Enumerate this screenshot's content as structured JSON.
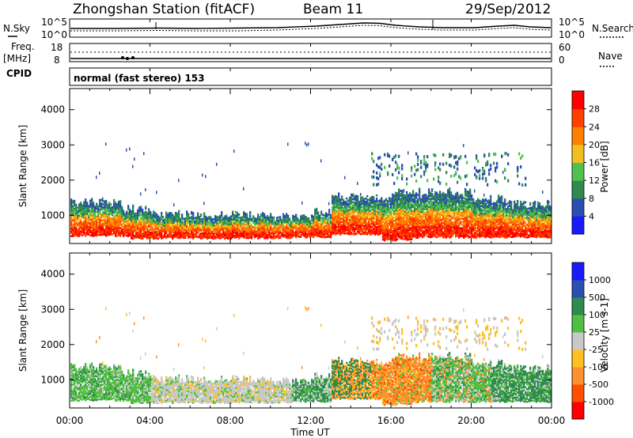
{
  "header": {
    "title": "Zhongshan Station (fitACF)",
    "beam": "Beam 11",
    "date": "29/Sep/2012"
  },
  "noise_panel": {
    "left_label": "N.Sky",
    "right_label": "N.Search",
    "left_ticks": [
      "10^5",
      "10^0"
    ],
    "right_ticks": [
      "10^5",
      "10^0"
    ]
  },
  "freq_panel": {
    "left_label": "Freq.",
    "left_unit": "[MHz]",
    "left_ticks": [
      "18",
      "8"
    ],
    "right_label": "Nave",
    "right_ticks": [
      "60",
      "0"
    ]
  },
  "cpid": {
    "label": "CPID",
    "value": "normal (fast stereo) 153"
  },
  "colors": {
    "power": [
      "#1a1aff",
      "#2a4fb0",
      "#2f8a50",
      "#50c050",
      "#f0c020",
      "#ff8000",
      "#ff4000",
      "#ff0000"
    ],
    "velocity": [
      "#ff0000",
      "#ff5000",
      "#ff9030",
      "#ffc020",
      "#c8c8c8",
      "#50c040",
      "#2f8a50",
      "#2a4fb0",
      "#1a1aff"
    ]
  },
  "chart_data": [
    {
      "type": "heatmap",
      "name": "power",
      "ylabel": "Slant Range [km]",
      "xlabel": "",
      "yticks": [
        1000,
        2000,
        3000,
        4000
      ],
      "ylim": [
        200,
        4600
      ],
      "xlim": [
        0,
        24
      ],
      "colorbar": {
        "label": "Power [dB]",
        "ticks": [
          "4",
          "8",
          "12",
          "16",
          "20",
          "24",
          "28"
        ]
      },
      "bands": [
        {
          "band": "red core",
          "range_km": [
            300,
            700
          ],
          "level_dB": 28
        },
        {
          "band": "orange/yellow",
          "range_km": [
            500,
            900
          ],
          "level_dB": 20
        },
        {
          "band": "green/blue edge",
          "range_km": [
            800,
            1400
          ],
          "level_dB": 8
        }
      ]
    },
    {
      "type": "heatmap",
      "name": "velocity",
      "ylabel": "Slant Range [km]",
      "xlabel": "Time UT",
      "xticks": [
        "00:00",
        "04:00",
        "08:00",
        "12:00",
        "16:00",
        "20:00",
        "00:00"
      ],
      "yticks": [
        1000,
        2000,
        3000,
        4000
      ],
      "ylim": [
        200,
        4600
      ],
      "xlim": [
        0,
        24
      ],
      "colorbar": {
        "label": "Velocity [m s-1]",
        "ticks": [
          "-1000",
          "-500",
          "-100",
          "-25",
          "25",
          "100",
          "500",
          "1000"
        ]
      },
      "segments": [
        {
          "time_ut": [
            0,
            4
          ],
          "velocity_class": "+25..100 (green)"
        },
        {
          "time_ut": [
            4,
            11
          ],
          "velocity_class": "-25..25 (grey)"
        },
        {
          "time_ut": [
            11,
            15
          ],
          "velocity_class": "+100..500 (dark green)"
        },
        {
          "time_ut": [
            13,
            18
          ],
          "velocity_class": "-100..-500 (orange)"
        },
        {
          "time_ut": [
            18,
            22
          ],
          "velocity_class": "+25..100 (green)"
        },
        {
          "time_ut": [
            21,
            24
          ],
          "velocity_class": "+100..500 (dark green)"
        }
      ]
    }
  ]
}
